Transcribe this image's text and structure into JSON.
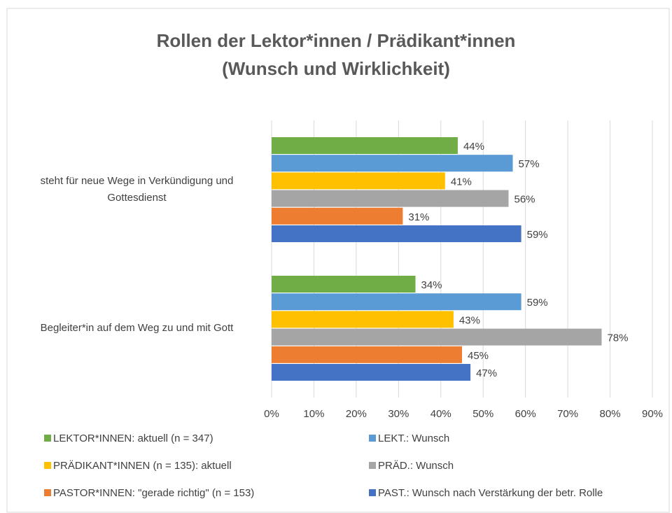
{
  "chart_data": {
    "type": "bar",
    "orientation": "horizontal",
    "title": "Rollen der Lektor*innen / Prädikant*innen (Wunsch und Wirklichkeit)",
    "categories": [
      "steht für neue Wege in Verkündigung und Gottesdienst",
      "Begleiter*in auf dem Weg zu und mit Gott"
    ],
    "series": [
      {
        "name": "LEKTOR*INNEN: aktuell (n = 347)",
        "color": "#70ad47",
        "values": [
          44,
          34
        ],
        "value_labels": [
          "44%",
          "34%"
        ]
      },
      {
        "name": "LEKT.: Wunsch",
        "color": "#5b9bd5",
        "values": [
          57,
          59
        ],
        "value_labels": [
          "57%",
          "59%"
        ]
      },
      {
        "name": "PRÄDIKANT*INNEN (n = 135): aktuell",
        "color": "#ffc000",
        "values": [
          41,
          43
        ],
        "value_labels": [
          "41%",
          "43%"
        ]
      },
      {
        "name": "PRÄD.: Wunsch",
        "color": "#a5a5a5",
        "values": [
          56,
          78
        ],
        "value_labels": [
          "56%",
          "78%"
        ]
      },
      {
        "name": "PASTOR*INNEN: \"gerade richtig\" (n = 153)",
        "color": "#ed7d31",
        "values": [
          31,
          45
        ],
        "value_labels": [
          "31%",
          "45%"
        ]
      },
      {
        "name": "PAST.: Wunsch nach Verstärkung der betr. Rolle",
        "color": "#4472c4",
        "values": [
          59,
          47
        ],
        "value_labels": [
          "59%",
          "47%"
        ]
      }
    ],
    "xlim": [
      0,
      90
    ],
    "xticks": [
      {
        "value": 0,
        "label": "0%"
      },
      {
        "value": 10,
        "label": "10%"
      },
      {
        "value": 20,
        "label": "20%"
      },
      {
        "value": 30,
        "label": "30%"
      },
      {
        "value": 40,
        "label": "40%"
      },
      {
        "value": 50,
        "label": "50%"
      },
      {
        "value": 60,
        "label": "60%"
      },
      {
        "value": 70,
        "label": "70%"
      },
      {
        "value": 80,
        "label": "80%"
      },
      {
        "value": 90,
        "label": "90%"
      }
    ],
    "grid": true,
    "legend": "bottom"
  }
}
